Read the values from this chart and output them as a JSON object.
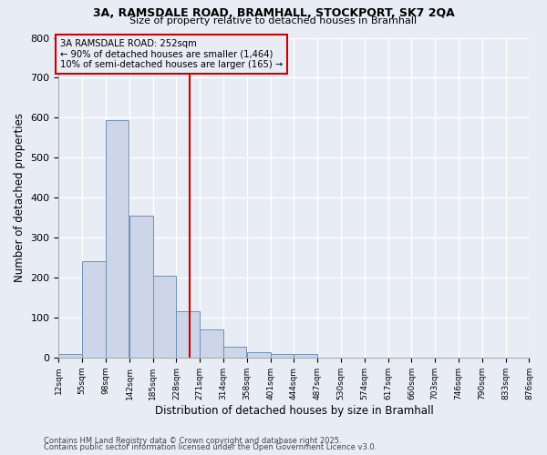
{
  "title1": "3A, RAMSDALE ROAD, BRAMHALL, STOCKPORT, SK7 2QA",
  "title2": "Size of property relative to detached houses in Bramhall",
  "xlabel": "Distribution of detached houses by size in Bramhall",
  "ylabel": "Number of detached properties",
  "bin_edges": [
    12,
    55,
    98,
    142,
    185,
    228,
    271,
    314,
    358,
    401,
    444,
    487,
    530,
    574,
    617,
    660,
    703,
    746,
    790,
    833,
    876
  ],
  "bar_heights": [
    8,
    240,
    595,
    355,
    205,
    115,
    70,
    28,
    14,
    8,
    8,
    0,
    0,
    0,
    0,
    0,
    0,
    0,
    0,
    0
  ],
  "bar_facecolor": "#ccd6e8",
  "bar_edgecolor": "#7090b8",
  "bar_linewidth": 0.7,
  "bg_color": "#e8ecf5",
  "grid_color": "#ffffff",
  "vline_x": 252,
  "vline_color": "#cc0000",
  "annotation_title": "3A RAMSDALE ROAD: 252sqm",
  "annotation_line1": "← 90% of detached houses are smaller (1,464)",
  "annotation_line2": "10% of semi-detached houses are larger (165) →",
  "annotation_box_color": "#cc0000",
  "ylim": [
    0,
    800
  ],
  "yticks": [
    0,
    100,
    200,
    300,
    400,
    500,
    600,
    700,
    800
  ],
  "footer1": "Contains HM Land Registry data © Crown copyright and database right 2025.",
  "footer2": "Contains public sector information licensed under the Open Government Licence v3.0."
}
